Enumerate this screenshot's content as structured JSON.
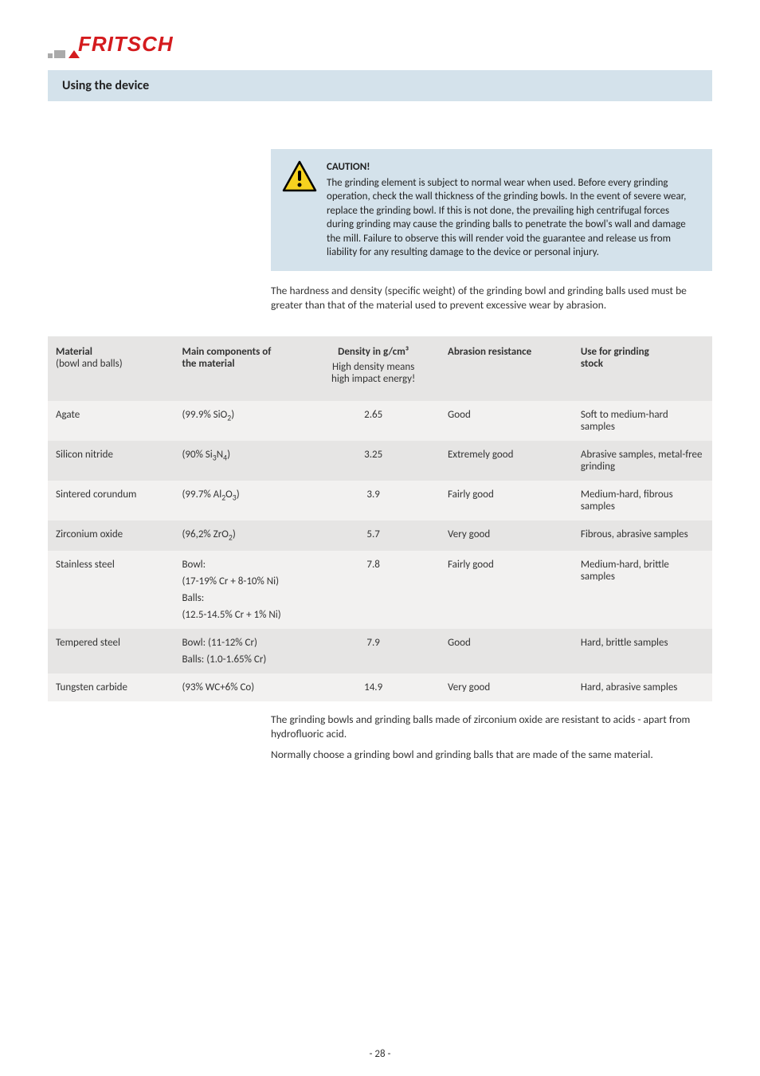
{
  "logo": {
    "brand": "FRITSCH"
  },
  "section_title": "Using the device",
  "caution": {
    "title": "CAUTION!",
    "body": "The grinding element is subject to normal wear when used. Before every grinding operation, check the wall thickness of the grinding bowls. In the event of severe wear, replace the grinding bowl. If this is not done, the prevailing high centrifugal forces during grinding may cause the grinding balls to penetrate the bowl's wall and damage the mill. Failure to observe this will render void the guarantee and release us from liability for any resulting damage to the device or personal injury.",
    "icon_colors": {
      "triangle_fill": "#f6d21f",
      "triangle_border": "#000000",
      "exclamation": "#000000"
    }
  },
  "intro": "The hardness and density (specific weight) of the grinding bowl and grinding balls used must be greater than that of the material used to prevent excessive wear by abrasion.",
  "table": {
    "headers": {
      "material": {
        "line1": "Material",
        "line2": "(bowl and balls)"
      },
      "components": {
        "line1": "Main components of",
        "line2": "the material"
      },
      "density": {
        "line1": "Density in g/cm³",
        "line2": "High density means",
        "line3": "high impact energy!"
      },
      "abrasion": {
        "line1": "Abrasion resistance"
      },
      "use": {
        "line1": "Use for grinding",
        "line2": "stock"
      }
    },
    "col_widths": [
      "19%",
      "20%",
      "20%",
      "20%",
      "21%"
    ],
    "header_bg": "#e6e5e4",
    "row_bg_lighter": "#f2f1f0",
    "row_bg_darker": "#e6e5e4",
    "rows": [
      {
        "material": "Agate",
        "components_html": "(99.9% SiO<sub>2</sub>)",
        "density": "2.65",
        "abrasion": "Good",
        "use": "Soft to medium-hard samples",
        "shade": "lighter"
      },
      {
        "material": "Silicon nitride",
        "components_html": "(90% Si<sub>3</sub>N<sub>4</sub>)",
        "density": "3.25",
        "abrasion": "Extremely good",
        "use": "Abrasive samples, metal-free grinding",
        "shade": "darker"
      },
      {
        "material": "Sintered corundum",
        "components_html": "(99.7% Al<sub>2</sub>O<sub>3</sub>)",
        "density": "3.9",
        "abrasion": "Fairly good",
        "use": "Medium-hard, fibrous samples",
        "shade": "lighter"
      },
      {
        "material": "Zirconium oxide",
        "components_html": "(96,2% ZrO<sub>2</sub>)",
        "density": "5.7",
        "abrasion": "Very good",
        "use": "Fibrous, abrasive samples",
        "shade": "darker"
      },
      {
        "material": "Stainless steel",
        "components_html": "Bowl:<div class=\"substack\">(17-19% Cr + 8-10% Ni)</div><div class=\"substack\">Balls:</div><div class=\"substack\">(12.5-14.5% Cr + 1% Ni)</div>",
        "density": "7.8",
        "abrasion": "Fairly good",
        "use": "Medium-hard, brittle samples",
        "shade": "lighter"
      },
      {
        "material": "Tempered steel",
        "components_html": "Bowl: (11-12% Cr)<div class=\"substack\">Balls: (1.0-1.65% Cr)</div>",
        "density": "7.9",
        "abrasion": "Good",
        "use": "Hard, brittle samples",
        "shade": "darker"
      },
      {
        "material": "Tungsten carbide",
        "components_html": "(93% WC+6% Co)",
        "density": "14.9",
        "abrasion": "Very good",
        "use": "Hard, abrasive samples",
        "shade": "lighter"
      }
    ]
  },
  "closing": {
    "p1": "The grinding bowls and grinding balls made of zirconium oxide are resistant to acids - apart from hydrofluoric acid.",
    "p2": "Normally choose a grinding bowl and grinding balls that are made of the same material."
  },
  "page_number": "- 28 -"
}
